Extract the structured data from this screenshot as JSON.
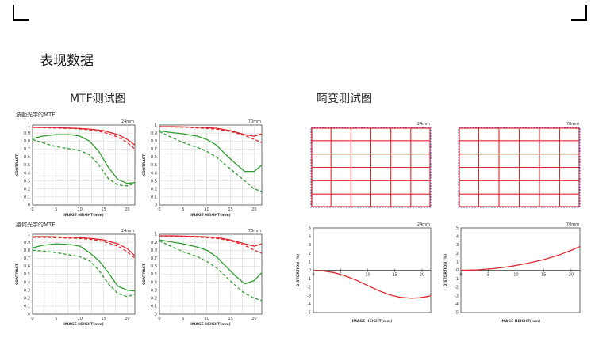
{
  "page": {
    "heading": "表现数据",
    "mtf_section_title": "MTF测试图",
    "distortion_section_title": "畸变测试图"
  },
  "chart_data": [
    {
      "type": "line",
      "group": "mtf",
      "subtitle": "波動光学的MTF",
      "focal": "24mm",
      "xlabel": "IMAGE HEIGHT(mm)",
      "ylabel": "CONTRAST",
      "xlim": [
        0,
        21.6
      ],
      "ylim": [
        0,
        1
      ],
      "xticks": [
        "0",
        "5",
        "10",
        "15",
        "20"
      ],
      "yticks": [
        "0",
        "0.1",
        "0.2",
        "0.3",
        "0.4",
        "0.5",
        "0.6",
        "0.7",
        "0.8",
        "0.9",
        "1"
      ],
      "grid": true,
      "series": [
        {
          "color": "#e0262e",
          "dash": false,
          "x": [
            0,
            3,
            6,
            9,
            12,
            15,
            18,
            20,
            21.6
          ],
          "y": [
            0.97,
            0.97,
            0.965,
            0.96,
            0.95,
            0.93,
            0.88,
            0.82,
            0.75
          ]
        },
        {
          "color": "#e0262e",
          "dash": true,
          "x": [
            0,
            3,
            6,
            9,
            12,
            15,
            18,
            20,
            21.6
          ],
          "y": [
            0.97,
            0.965,
            0.96,
            0.955,
            0.94,
            0.91,
            0.85,
            0.78,
            0.7
          ]
        },
        {
          "color": "#2f9e2f",
          "dash": false,
          "x": [
            0,
            2,
            5,
            8,
            10,
            12,
            14,
            16,
            18,
            20,
            21.6
          ],
          "y": [
            0.83,
            0.86,
            0.88,
            0.88,
            0.86,
            0.8,
            0.67,
            0.47,
            0.32,
            0.27,
            0.28
          ]
        },
        {
          "color": "#2f9e2f",
          "dash": true,
          "x": [
            0,
            2,
            5,
            8,
            10,
            12,
            14,
            16,
            18,
            20,
            21.6
          ],
          "y": [
            0.82,
            0.78,
            0.73,
            0.7,
            0.68,
            0.63,
            0.5,
            0.33,
            0.25,
            0.24,
            0.27
          ]
        }
      ]
    },
    {
      "type": "line",
      "group": "mtf",
      "subtitle": "",
      "focal": "70mm",
      "xlabel": "IMAGE HEIGHT(mm)",
      "ylabel": "CONTRAST",
      "xlim": [
        0,
        21.6
      ],
      "ylim": [
        0,
        1
      ],
      "xticks": [
        "0",
        "5",
        "10",
        "15",
        "20"
      ],
      "yticks": [
        "0",
        "0.1",
        "0.2",
        "0.3",
        "0.4",
        "0.5",
        "0.6",
        "0.7",
        "0.8",
        "0.9",
        "1"
      ],
      "grid": true,
      "series": [
        {
          "color": "#e0262e",
          "dash": false,
          "x": [
            0,
            3,
            6,
            9,
            12,
            15,
            18,
            20,
            21.6
          ],
          "y": [
            0.98,
            0.98,
            0.975,
            0.97,
            0.96,
            0.93,
            0.88,
            0.86,
            0.89
          ]
        },
        {
          "color": "#e0262e",
          "dash": true,
          "x": [
            0,
            3,
            6,
            9,
            12,
            15,
            18,
            20,
            21.6
          ],
          "y": [
            0.98,
            0.975,
            0.97,
            0.96,
            0.95,
            0.92,
            0.87,
            0.82,
            0.78
          ]
        },
        {
          "color": "#2f9e2f",
          "dash": false,
          "x": [
            0,
            2,
            5,
            8,
            10,
            12,
            14,
            16,
            18,
            20,
            21.6
          ],
          "y": [
            0.93,
            0.91,
            0.89,
            0.86,
            0.82,
            0.75,
            0.63,
            0.52,
            0.42,
            0.42,
            0.5
          ]
        },
        {
          "color": "#2f9e2f",
          "dash": true,
          "x": [
            0,
            2,
            5,
            8,
            10,
            12,
            14,
            16,
            18,
            20,
            21.6
          ],
          "y": [
            0.92,
            0.86,
            0.78,
            0.72,
            0.67,
            0.6,
            0.5,
            0.4,
            0.3,
            0.2,
            0.17
          ]
        }
      ]
    },
    {
      "type": "line",
      "group": "mtf",
      "subtitle": "幾何光学的MTF",
      "focal": "24mm",
      "xlabel": "IMAGE HEIGHT(mm)",
      "ylabel": "CONTRAST",
      "xlim": [
        0,
        21.6
      ],
      "ylim": [
        0,
        1
      ],
      "xticks": [
        "0",
        "5",
        "10",
        "15",
        "20"
      ],
      "yticks": [
        "0",
        "0.1",
        "0.2",
        "0.3",
        "0.4",
        "0.5",
        "0.6",
        "0.7",
        "0.8",
        "0.9",
        "1"
      ],
      "grid": true,
      "series": [
        {
          "color": "#e0262e",
          "dash": false,
          "x": [
            0,
            3,
            6,
            9,
            12,
            15,
            18,
            20,
            21.6
          ],
          "y": [
            0.97,
            0.97,
            0.965,
            0.96,
            0.95,
            0.93,
            0.88,
            0.82,
            0.73
          ]
        },
        {
          "color": "#e0262e",
          "dash": true,
          "x": [
            0,
            3,
            6,
            9,
            12,
            15,
            18,
            20,
            21.6
          ],
          "y": [
            0.96,
            0.96,
            0.955,
            0.95,
            0.94,
            0.91,
            0.85,
            0.78,
            0.7
          ]
        },
        {
          "color": "#2f9e2f",
          "dash": false,
          "x": [
            0,
            2,
            5,
            8,
            10,
            12,
            14,
            16,
            18,
            20,
            21.6
          ],
          "y": [
            0.83,
            0.86,
            0.88,
            0.87,
            0.85,
            0.77,
            0.67,
            0.52,
            0.35,
            0.3,
            0.29
          ]
        },
        {
          "color": "#2f9e2f",
          "dash": true,
          "x": [
            0,
            2,
            5,
            8,
            10,
            12,
            14,
            16,
            18,
            20,
            21.6
          ],
          "y": [
            0.8,
            0.79,
            0.77,
            0.74,
            0.72,
            0.67,
            0.55,
            0.38,
            0.26,
            0.22,
            0.25
          ]
        }
      ]
    },
    {
      "type": "line",
      "group": "mtf",
      "subtitle": "",
      "focal": "70mm",
      "xlabel": "IMAGE HEIGHT(mm)",
      "ylabel": "CONTRAST",
      "xlim": [
        0,
        21.6
      ],
      "ylim": [
        0,
        1
      ],
      "xticks": [
        "0",
        "5",
        "10",
        "15",
        "20"
      ],
      "yticks": [
        "0",
        "0.1",
        "0.2",
        "0.3",
        "0.4",
        "0.5",
        "0.6",
        "0.7",
        "0.8",
        "0.9",
        "1"
      ],
      "grid": true,
      "series": [
        {
          "color": "#e0262e",
          "dash": false,
          "x": [
            0,
            3,
            6,
            9,
            12,
            15,
            18,
            20,
            21.6
          ],
          "y": [
            0.98,
            0.98,
            0.975,
            0.97,
            0.96,
            0.93,
            0.88,
            0.85,
            0.88
          ]
        },
        {
          "color": "#e0262e",
          "dash": true,
          "x": [
            0,
            3,
            6,
            9,
            12,
            15,
            18,
            20,
            21.6
          ],
          "y": [
            0.98,
            0.975,
            0.97,
            0.96,
            0.95,
            0.92,
            0.86,
            0.8,
            0.76
          ]
        },
        {
          "color": "#2f9e2f",
          "dash": false,
          "x": [
            0,
            2,
            5,
            8,
            10,
            12,
            14,
            16,
            18,
            20,
            21.6
          ],
          "y": [
            0.93,
            0.91,
            0.88,
            0.84,
            0.8,
            0.72,
            0.6,
            0.48,
            0.38,
            0.42,
            0.52
          ]
        },
        {
          "color": "#2f9e2f",
          "dash": true,
          "x": [
            0,
            2,
            5,
            8,
            10,
            12,
            14,
            16,
            18,
            20,
            21.6
          ],
          "y": [
            0.92,
            0.86,
            0.78,
            0.72,
            0.66,
            0.58,
            0.47,
            0.36,
            0.26,
            0.2,
            0.17
          ]
        }
      ]
    },
    {
      "type": "grid",
      "group": "distortion-grid",
      "focal": "24mm",
      "rows": 6,
      "cols": 6,
      "line_color": "#e0262e",
      "reference_color": "#3b5bd6"
    },
    {
      "type": "grid",
      "group": "distortion-grid",
      "focal": "70mm",
      "rows": 6,
      "cols": 6,
      "line_color": "#e0262e",
      "reference_color": "#3b5bd6"
    },
    {
      "type": "line",
      "group": "distortion",
      "focal": "24mm",
      "xlabel": "IMAGE HEIGHT(mm)",
      "ylabel": "DISTORTION (%)",
      "xlim": [
        0,
        21.6
      ],
      "ylim": [
        -5,
        5
      ],
      "xticks": [
        "0",
        "5",
        "10",
        "15",
        "20"
      ],
      "yticks": [
        "5",
        "4",
        "3",
        "2",
        "1",
        "0",
        "-1",
        "-2",
        "-3",
        "-4",
        "-5"
      ],
      "grid": false,
      "series": [
        {
          "color": "#e0262e",
          "x": [
            0,
            2,
            4,
            6,
            8,
            10,
            12,
            14,
            16,
            18,
            19.5,
            21,
            21.6
          ],
          "y": [
            0,
            -0.1,
            -0.3,
            -0.7,
            -1.2,
            -1.8,
            -2.4,
            -2.9,
            -3.2,
            -3.3,
            -3.25,
            -3.1,
            -3.0
          ]
        }
      ]
    },
    {
      "type": "line",
      "group": "distortion",
      "focal": "70mm",
      "xlabel": "IMAGE HEIGHT(mm)",
      "ylabel": "DISTORTION (%)",
      "xlim": [
        0,
        21.6
      ],
      "ylim": [
        -5,
        5
      ],
      "xticks": [
        "0",
        "5",
        "10",
        "15",
        "20"
      ],
      "yticks": [
        "5",
        "4",
        "3",
        "2",
        "1",
        "0",
        "-1",
        "-2",
        "-3",
        "-4",
        "-5"
      ],
      "grid": false,
      "series": [
        {
          "color": "#e0262e",
          "x": [
            0,
            3,
            6,
            9,
            12,
            15,
            18,
            20,
            21.6
          ],
          "y": [
            0,
            0.05,
            0.2,
            0.45,
            0.8,
            1.25,
            1.85,
            2.35,
            2.8
          ]
        }
      ]
    }
  ]
}
